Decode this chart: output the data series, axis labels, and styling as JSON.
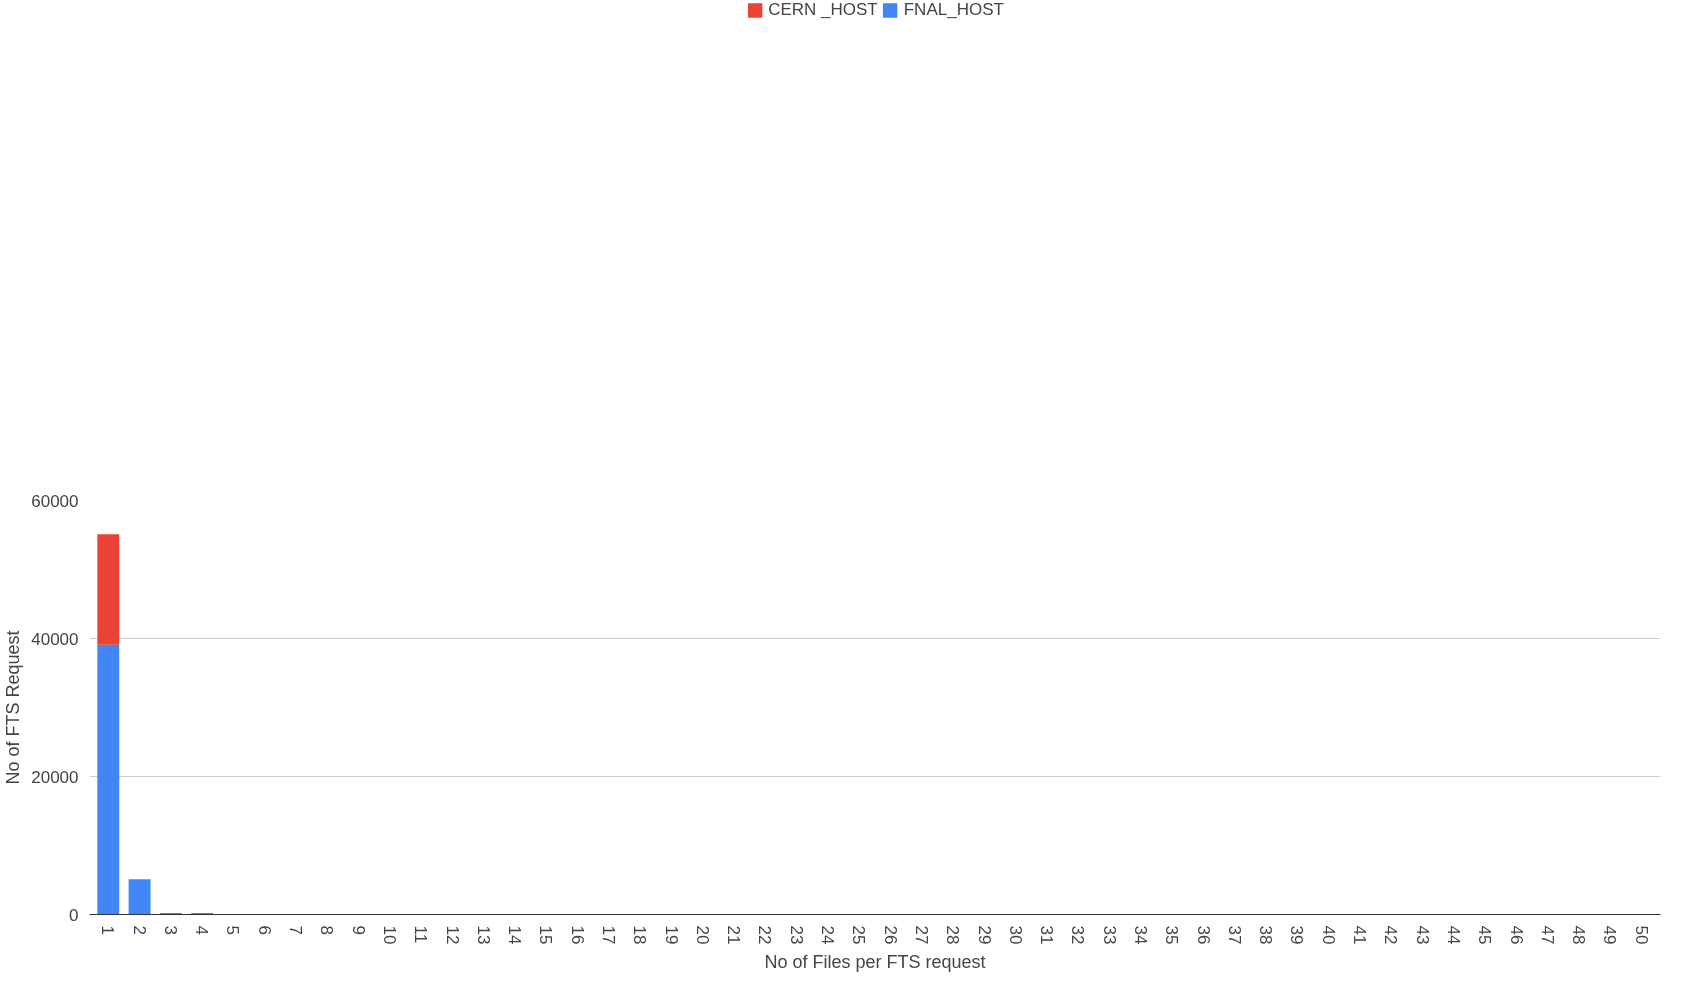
{
  "chart_data": {
    "type": "bar",
    "stacked": true,
    "xlabel": "No of Files per FTS request",
    "ylabel": "No of FTS Request",
    "categories": [
      "1",
      "2",
      "3",
      "4",
      "5",
      "6",
      "7",
      "8",
      "9",
      "10",
      "11",
      "12",
      "13",
      "14",
      "15",
      "16",
      "17",
      "18",
      "19",
      "20",
      "21",
      "22",
      "23",
      "24",
      "25",
      "26",
      "27",
      "28",
      "29",
      "30",
      "31",
      "32",
      "33",
      "34",
      "35",
      "36",
      "37",
      "38",
      "39",
      "40",
      "41",
      "42",
      "43",
      "44",
      "45",
      "46",
      "47",
      "48",
      "49",
      "50"
    ],
    "series": [
      {
        "name": "FNAL_HOST",
        "color": "#4285f4",
        "values": [
          39100,
          5100,
          200,
          200,
          0,
          0,
          0,
          0,
          0,
          0,
          0,
          0,
          0,
          0,
          0,
          0,
          0,
          0,
          0,
          0,
          0,
          0,
          0,
          0,
          0,
          0,
          0,
          0,
          0,
          0,
          0,
          0,
          0,
          0,
          0,
          0,
          0,
          0,
          0,
          0,
          0,
          0,
          0,
          0,
          0,
          0,
          0,
          0,
          0,
          0
        ]
      },
      {
        "name": "CERN _HOST",
        "color": "#ea4335",
        "values": [
          16000,
          0,
          0,
          0,
          0,
          0,
          0,
          0,
          0,
          0,
          0,
          0,
          0,
          0,
          0,
          0,
          0,
          0,
          0,
          0,
          0,
          0,
          0,
          0,
          0,
          0,
          0,
          0,
          0,
          0,
          0,
          0,
          0,
          0,
          0,
          0,
          0,
          0,
          0,
          0,
          0,
          0,
          0,
          0,
          0,
          0,
          0,
          0,
          0,
          0
        ]
      }
    ],
    "ylim": [
      0,
      60000
    ],
    "yticks": [
      0,
      20000,
      40000,
      60000
    ],
    "grid": "y",
    "legend": "top"
  }
}
